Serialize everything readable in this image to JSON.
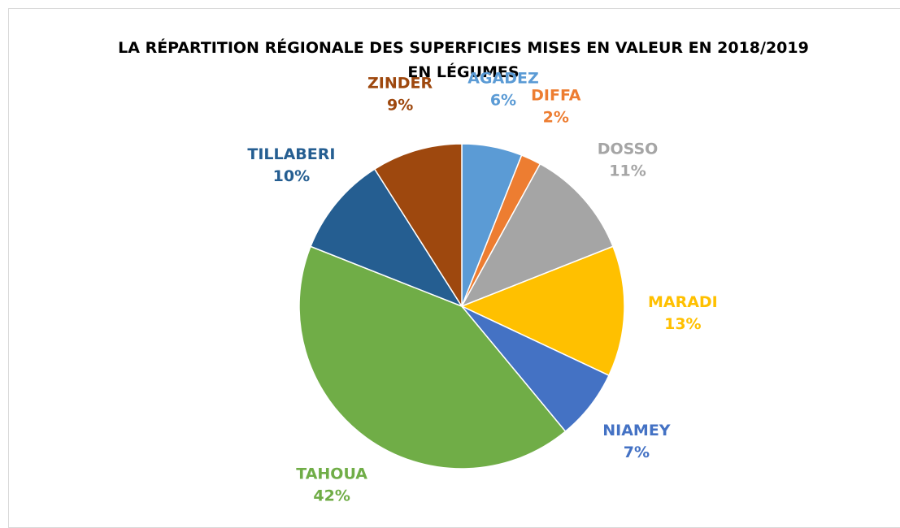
{
  "chart_data": {
    "type": "pie",
    "title": "LA RÉPARTITION RÉGIONALE DES SUPERFICIES MISES EN VALEUR EN 2018/2019 EN LÉGUMES",
    "categories": [
      "AGADEZ",
      "DIFFA",
      "DOSSO",
      "MARADI",
      "NIAMEY",
      "TAHOUA",
      "TILLABERI",
      "ZINDER"
    ],
    "values": [
      6,
      2,
      11,
      13,
      7,
      42,
      10,
      9
    ],
    "value_labels": [
      "6%",
      "2%",
      "11%",
      "13%",
      "7%",
      "42%",
      "10%",
      "9%"
    ],
    "colors": [
      "#5b9bd5",
      "#ed7d31",
      "#a5a5a5",
      "#ffc000",
      "#4472c4",
      "#70ad47",
      "#255e91",
      "#9e480e"
    ]
  }
}
